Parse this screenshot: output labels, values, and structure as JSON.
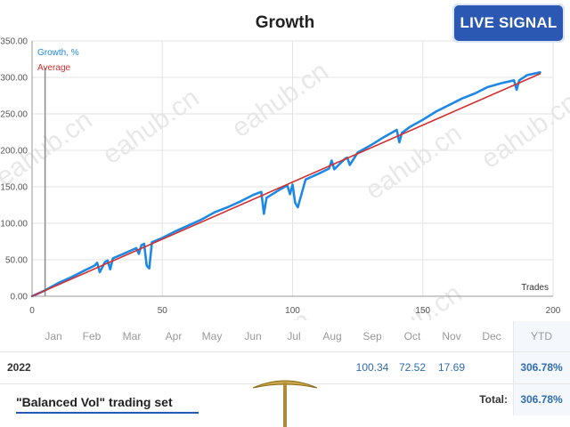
{
  "chart_data": {
    "type": "line",
    "title": "Growth",
    "xlabel": "Trades",
    "ylabel": "",
    "xlim": [
      0,
      200
    ],
    "ylim": [
      0,
      350
    ],
    "x_ticks": [
      "0",
      "50",
      "100",
      "150",
      "200"
    ],
    "y_ticks": [
      "0.00",
      "50.00",
      "100.00",
      "150.00",
      "200.00",
      "250.00",
      "300.00",
      "350.00"
    ],
    "grid": true,
    "legend_position": "top-left",
    "series": [
      {
        "name": "Growth, %",
        "color": "#1e88e5",
        "x": [
          0,
          5,
          10,
          15,
          20,
          24,
          25,
          26,
          28,
          29,
          30,
          31,
          35,
          40,
          41,
          42,
          43,
          44,
          45,
          46,
          50,
          55,
          60,
          65,
          70,
          75,
          80,
          85,
          88,
          89,
          90,
          95,
          98,
          99,
          100,
          101,
          102,
          105,
          110,
          114,
          115,
          116,
          120,
          121,
          122,
          125,
          130,
          135,
          140,
          141,
          142,
          145,
          150,
          155,
          160,
          165,
          170,
          175,
          180,
          185,
          186,
          187,
          190,
          195
        ],
        "y": [
          0,
          8,
          18,
          26,
          35,
          42,
          46,
          33,
          47,
          49,
          37,
          52,
          58,
          66,
          58,
          70,
          72,
          42,
          38,
          74,
          80,
          89,
          97,
          105,
          115,
          122,
          130,
          139,
          143,
          113,
          135,
          146,
          152,
          140,
          153,
          128,
          122,
          160,
          168,
          175,
          186,
          174,
          188,
          190,
          180,
          197,
          207,
          218,
          228,
          211,
          224,
          232,
          242,
          253,
          262,
          271,
          278,
          287,
          292,
          296,
          283,
          296,
          303,
          307
        ]
      },
      {
        "name": "Average",
        "color": "#d32f2f",
        "x": [
          0,
          195
        ],
        "y": [
          0,
          305
        ]
      }
    ]
  },
  "watermark": "eahub.cn",
  "badge": {
    "label": "LIVE SIGNAL"
  },
  "table": {
    "months": [
      "Jan",
      "Feb",
      "Mar",
      "Apr",
      "May",
      "Jun",
      "Jul",
      "Aug",
      "Sep",
      "Oct",
      "Nov",
      "Dec"
    ],
    "ytd_header": "YTD",
    "rows": [
      {
        "year": "2022",
        "values": [
          "",
          "",
          "",
          "",
          "",
          "",
          "",
          "",
          "100.34",
          "72.52",
          "17.69",
          ""
        ],
        "ytd": "306.78%"
      }
    ],
    "total_label": "Total:",
    "total_value": "306.78%"
  },
  "caption": "\"Balanced Vol\" trading set",
  "colors": {
    "badge": "#2a58b3",
    "growth": "#1e88e5",
    "average": "#d32f2f"
  }
}
